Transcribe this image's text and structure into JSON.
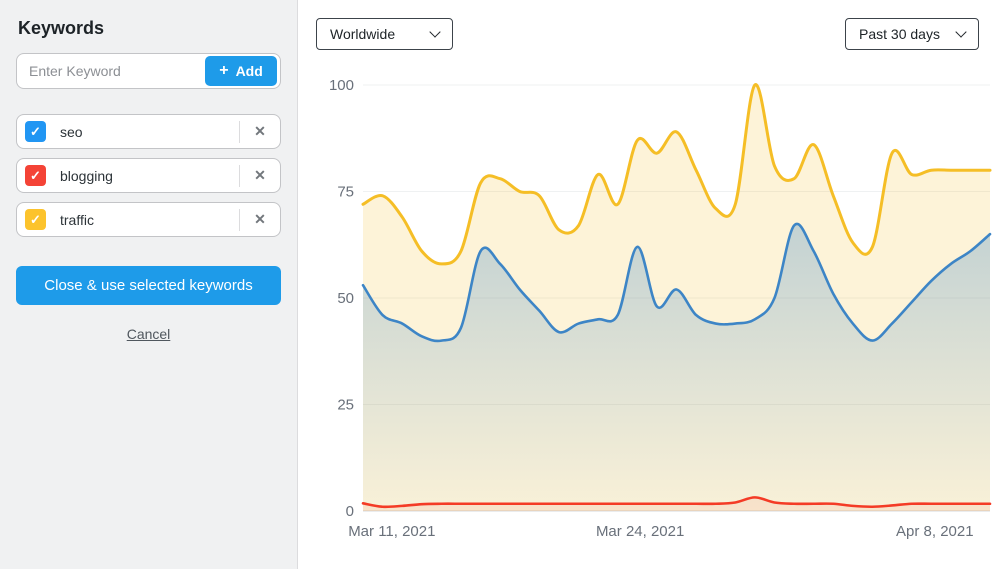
{
  "sidebar": {
    "title": "Keywords",
    "input": {
      "placeholder": "Enter Keyword",
      "add_label": "Add"
    },
    "keywords": [
      {
        "label": "seo",
        "color": "#2196f3",
        "checked": true
      },
      {
        "label": "blogging",
        "color": "#f44336",
        "checked": true
      },
      {
        "label": "traffic",
        "color": "#fcc32c",
        "checked": true
      }
    ],
    "close_button_label": "Close & use selected keywords",
    "cancel_label": "Cancel"
  },
  "toolbar": {
    "region_select": "Worldwide",
    "range_select": "Past 30 days"
  },
  "icons": {
    "plus": "+",
    "remove": "✕",
    "check": "✓"
  },
  "colors": {
    "accent_blue": "#1e9be9",
    "axis_text": "#69707a",
    "gridline": "#eff1f2",
    "axis_line": "#d6dade"
  },
  "chart_data": {
    "type": "area",
    "title": "",
    "xlabel": "",
    "ylabel": "",
    "ylim": [
      0,
      100
    ],
    "grid": true,
    "legend_position": "none",
    "y_ticks": [
      0,
      25,
      50,
      75,
      100
    ],
    "x_tick_labels": [
      "Mar 11, 2021",
      "Mar 24, 2021",
      "Apr 8, 2021"
    ],
    "x_tick_positions": [
      0.046,
      0.442,
      0.912
    ],
    "series": [
      {
        "name": "traffic",
        "color": "#f5be26",
        "fill": "rgba(246,191,38,0.18)",
        "values": [
          72,
          74,
          69,
          61,
          58,
          61,
          77,
          78,
          75,
          74,
          66,
          67,
          79,
          72,
          87,
          84,
          89,
          80,
          71,
          72,
          100,
          81,
          78,
          86,
          74,
          63,
          62,
          84,
          79,
          80,
          80,
          80,
          80
        ]
      },
      {
        "name": "seo",
        "color": "#3d85c6",
        "fill": "url(#seoGrad)",
        "values": [
          53,
          46,
          44,
          41,
          40,
          43,
          61,
          58,
          52,
          47,
          42,
          44,
          45,
          46,
          62,
          48,
          52,
          46,
          44,
          44,
          45,
          50,
          67,
          61,
          51,
          44,
          40,
          44,
          49,
          54,
          58,
          61,
          65
        ]
      },
      {
        "name": "blogging",
        "color": "#f43b26",
        "fill": "rgba(244,59,38,0.08)",
        "values": [
          1.8,
          1,
          1.2,
          1.6,
          1.7,
          1.7,
          1.7,
          1.7,
          1.7,
          1.7,
          1.7,
          1.7,
          1.7,
          1.7,
          1.7,
          1.7,
          1.7,
          1.7,
          1.7,
          2,
          3.2,
          2,
          1.7,
          1.7,
          1.7,
          1.2,
          1,
          1.3,
          1.7,
          1.7,
          1.7,
          1.7,
          1.7
        ]
      }
    ]
  }
}
